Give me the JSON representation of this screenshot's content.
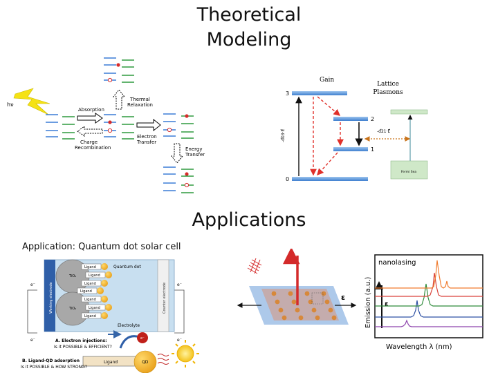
{
  "titles": {
    "modeling_line1": "Theoretical",
    "modeling_line2": "Modeling",
    "applications": "Applications"
  },
  "charge_diagram": {
    "hv": "hν",
    "absorption": "Absorption",
    "charge_recombination": [
      "Charge",
      "Recombination"
    ],
    "thermal_relaxation": [
      "Thermal",
      "Relaxation"
    ],
    "electron_transfer": [
      "Electron",
      "Transfer"
    ],
    "energy_transfer": [
      "Energy",
      "Transfer"
    ]
  },
  "gain_diagram": {
    "gain": "Gain",
    "lattice_plasmons": [
      "Lattice",
      "Plasmons"
    ],
    "level_3": "3",
    "level_2": "2",
    "level_1": "1",
    "level_0": "0",
    "dipole_03": "-d⃗03·E⃗",
    "dipole_21": "-d⃗21·E⃗",
    "fermi_sea": "Fermi Sea"
  },
  "solar_cell": {
    "heading": "Application: Quantum dot solar cell",
    "quantum_dot": "Quantum dot",
    "ligand": "Ligand",
    "tio2": "TiO₂",
    "working_electrode": "Working electrode",
    "counter_electrode": "Counter electrode",
    "electrolyte": "Electrolyte",
    "electron": "e⁻",
    "question_a_title": "A. Electron injections:",
    "question_a_body": "Is it POSSIBLE & EFFICIENT?",
    "question_b_title": "B. Ligand-QD adsorption",
    "question_b_body": "Is it POSSIBLE & HOW STRONG?",
    "qd": "QD"
  },
  "nanolasing": {
    "epsilon": "ε",
    "label": "nanolasing",
    "ylabel": "Emission (a.u.)",
    "xlabel": "Wavelength λ (nm)",
    "colors": [
      "#8e44ad",
      "#2c4fa3",
      "#2e8b3a",
      "#d9423a",
      "#f07b2e"
    ]
  }
}
